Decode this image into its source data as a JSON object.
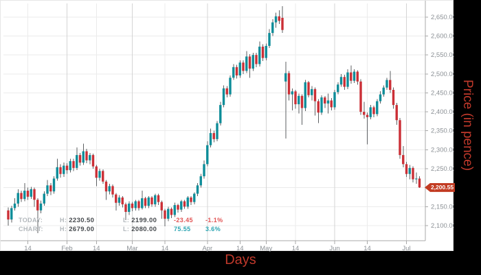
{
  "axis_titles": {
    "x": "Days",
    "y": "Price (in pence)"
  },
  "last_price_badge": "2,200.55",
  "legend": {
    "rows": [
      {
        "label": "TODAY:",
        "h_label": "H:",
        "high": "2230.50",
        "l_label": "L:",
        "low": "2199.00",
        "change": "-23.45",
        "change_pct": "-1.1%",
        "trend": "down"
      },
      {
        "label": "CHART:",
        "h_label": "H:",
        "high": "2679.00",
        "l_label": "L:",
        "low": "2080.00",
        "change": "75.55",
        "change_pct": "3.6%",
        "trend": "up"
      }
    ]
  },
  "colors": {
    "up": "#0e8d99",
    "down": "#cb2f36",
    "wick": "#5c5f62",
    "badge": "#c23b22",
    "axis_title": "#c0392b",
    "grid_minor": "#ebebeb",
    "grid_major": "#d4d4d4",
    "axis_line": "#a8a8a8"
  },
  "chart_data": {
    "type": "candlestick",
    "title": "",
    "xlabel": "Days",
    "ylabel": "Price (in pence)",
    "legend_position": "bottom-left",
    "grid": true,
    "ylim": [
      2060,
      2686
    ],
    "last_price": 2200.55,
    "today": {
      "high": 2230.5,
      "low": 2199.0,
      "change": -23.45,
      "change_pct": -1.1
    },
    "chart_range": {
      "high": 2679.0,
      "low": 2080.0,
      "change": 75.55,
      "change_pct": 3.6
    },
    "y_ticks": [
      {
        "value": 2100,
        "label": "2,100.00"
      },
      {
        "value": 2150,
        "label": "2,150.00"
      },
      {
        "value": 2200,
        "label": "2,200.00"
      },
      {
        "value": 2250,
        "label": "2,250.00"
      },
      {
        "value": 2300,
        "label": "2,300.00"
      },
      {
        "value": 2350,
        "label": "2,350.00"
      },
      {
        "value": 2400,
        "label": "2,400.00"
      },
      {
        "value": 2450,
        "label": "2,450.00"
      },
      {
        "value": 2500,
        "label": "2,500.00"
      },
      {
        "value": 2550,
        "label": "2,550.00"
      },
      {
        "value": 2600,
        "label": "2,600.00"
      },
      {
        "value": 2650,
        "label": "2,650.00"
      }
    ],
    "x_ticks": [
      {
        "label": "14",
        "index": 6,
        "major": false
      },
      {
        "label": "Feb",
        "index": 18,
        "major": true
      },
      {
        "label": "14",
        "index": 27,
        "major": false
      },
      {
        "label": "Mar",
        "index": 38,
        "major": true
      },
      {
        "label": "14",
        "index": 48,
        "major": false
      },
      {
        "label": "Apr",
        "index": 61,
        "major": true
      },
      {
        "label": "14",
        "index": 71,
        "major": false
      },
      {
        "label": "May",
        "index": 79,
        "major": true
      },
      {
        "label": "14",
        "index": 88,
        "major": false
      },
      {
        "label": "Jun",
        "index": 100,
        "major": true
      },
      {
        "label": "14",
        "index": 110,
        "major": false
      },
      {
        "label": "Jul",
        "index": 122,
        "major": true
      }
    ],
    "ohlc": [
      [
        2140,
        2148,
        2100,
        2116
      ],
      [
        2116,
        2152,
        2108,
        2146
      ],
      [
        2146,
        2172,
        2140,
        2158
      ],
      [
        2158,
        2196,
        2150,
        2186
      ],
      [
        2186,
        2192,
        2162,
        2170
      ],
      [
        2170,
        2212,
        2164,
        2192
      ],
      [
        2192,
        2200,
        2168,
        2176
      ],
      [
        2176,
        2202,
        2170,
        2196
      ],
      [
        2196,
        2200,
        2150,
        2168
      ],
      [
        2168,
        2172,
        2080,
        2140
      ],
      [
        2140,
        2166,
        2132,
        2158
      ],
      [
        2158,
        2190,
        2152,
        2184
      ],
      [
        2184,
        2220,
        2178,
        2206
      ],
      [
        2206,
        2212,
        2180,
        2190
      ],
      [
        2190,
        2230,
        2184,
        2224
      ],
      [
        2224,
        2276,
        2218,
        2254
      ],
      [
        2254,
        2262,
        2226,
        2236
      ],
      [
        2236,
        2266,
        2228,
        2258
      ],
      [
        2258,
        2264,
        2236,
        2246
      ],
      [
        2246,
        2276,
        2240,
        2270
      ],
      [
        2270,
        2276,
        2244,
        2252
      ],
      [
        2252,
        2306,
        2246,
        2286
      ],
      [
        2286,
        2292,
        2258,
        2266
      ],
      [
        2266,
        2316,
        2260,
        2296
      ],
      [
        2296,
        2302,
        2264,
        2272
      ],
      [
        2272,
        2292,
        2262,
        2286
      ],
      [
        2286,
        2290,
        2250,
        2256
      ],
      [
        2256,
        2260,
        2204,
        2226
      ],
      [
        2226,
        2250,
        2218,
        2244
      ],
      [
        2244,
        2248,
        2210,
        2216
      ],
      [
        2216,
        2220,
        2168,
        2190
      ],
      [
        2190,
        2210,
        2182,
        2204
      ],
      [
        2204,
        2208,
        2174,
        2182
      ],
      [
        2182,
        2186,
        2140,
        2160
      ],
      [
        2160,
        2180,
        2152,
        2174
      ],
      [
        2174,
        2178,
        2148,
        2156
      ],
      [
        2156,
        2160,
        2114,
        2136
      ],
      [
        2136,
        2164,
        2128,
        2158
      ],
      [
        2158,
        2162,
        2138,
        2146
      ],
      [
        2146,
        2168,
        2140,
        2164
      ],
      [
        2164,
        2168,
        2140,
        2146
      ],
      [
        2146,
        2192,
        2142,
        2172
      ],
      [
        2172,
        2176,
        2146,
        2152
      ],
      [
        2152,
        2178,
        2146,
        2174
      ],
      [
        2174,
        2178,
        2150,
        2156
      ],
      [
        2156,
        2184,
        2150,
        2180
      ],
      [
        2180,
        2184,
        2154,
        2162
      ],
      [
        2162,
        2166,
        2118,
        2140
      ],
      [
        2140,
        2144,
        2098,
        2118
      ],
      [
        2118,
        2150,
        2112,
        2144
      ],
      [
        2144,
        2148,
        2120,
        2128
      ],
      [
        2128,
        2160,
        2122,
        2154
      ],
      [
        2154,
        2158,
        2134,
        2142
      ],
      [
        2142,
        2168,
        2136,
        2164
      ],
      [
        2164,
        2168,
        2144,
        2150
      ],
      [
        2150,
        2178,
        2144,
        2174
      ],
      [
        2174,
        2178,
        2154,
        2162
      ],
      [
        2162,
        2188,
        2156,
        2184
      ],
      [
        2184,
        2212,
        2178,
        2206
      ],
      [
        2206,
        2236,
        2200,
        2230
      ],
      [
        2230,
        2272,
        2224,
        2262
      ],
      [
        2262,
        2322,
        2256,
        2312
      ],
      [
        2312,
        2356,
        2306,
        2344
      ],
      [
        2344,
        2350,
        2320,
        2328
      ],
      [
        2328,
        2376,
        2322,
        2370
      ],
      [
        2370,
        2426,
        2364,
        2418
      ],
      [
        2418,
        2470,
        2412,
        2462
      ],
      [
        2462,
        2468,
        2438,
        2446
      ],
      [
        2446,
        2496,
        2440,
        2490
      ],
      [
        2490,
        2526,
        2484,
        2518
      ],
      [
        2518,
        2524,
        2488,
        2496
      ],
      [
        2496,
        2536,
        2490,
        2530
      ],
      [
        2530,
        2536,
        2500,
        2508
      ],
      [
        2508,
        2560,
        2502,
        2546
      ],
      [
        2546,
        2552,
        2490,
        2514
      ],
      [
        2514,
        2556,
        2508,
        2550
      ],
      [
        2550,
        2556,
        2518,
        2526
      ],
      [
        2526,
        2586,
        2520,
        2572
      ],
      [
        2572,
        2578,
        2534,
        2542
      ],
      [
        2542,
        2580,
        2536,
        2574
      ],
      [
        2574,
        2618,
        2568,
        2608
      ],
      [
        2608,
        2644,
        2600,
        2636
      ],
      [
        2636,
        2662,
        2622,
        2652
      ],
      [
        2652,
        2668,
        2632,
        2640
      ],
      [
        2648,
        2679,
        2608,
        2616
      ],
      [
        2480,
        2532,
        2330,
        2502
      ],
      [
        2502,
        2508,
        2430,
        2446
      ],
      [
        2446,
        2462,
        2404,
        2454
      ],
      [
        2454,
        2458,
        2408,
        2420
      ],
      [
        2420,
        2448,
        2396,
        2442
      ],
      [
        2442,
        2446,
        2366,
        2410
      ],
      [
        2410,
        2484,
        2402,
        2478
      ],
      [
        2478,
        2482,
        2438,
        2444
      ],
      [
        2444,
        2468,
        2430,
        2460
      ],
      [
        2460,
        2464,
        2390,
        2428
      ],
      [
        2428,
        2434,
        2370,
        2398
      ],
      [
        2398,
        2444,
        2392,
        2438
      ],
      [
        2438,
        2442,
        2410,
        2422
      ],
      [
        2422,
        2448,
        2396,
        2430
      ],
      [
        2430,
        2436,
        2404,
        2412
      ],
      [
        2412,
        2458,
        2406,
        2452
      ],
      [
        2452,
        2478,
        2446,
        2472
      ],
      [
        2472,
        2500,
        2466,
        2492
      ],
      [
        2492,
        2498,
        2458,
        2466
      ],
      [
        2466,
        2512,
        2460,
        2504
      ],
      [
        2504,
        2522,
        2474,
        2482
      ],
      [
        2482,
        2512,
        2476,
        2506
      ],
      [
        2506,
        2510,
        2472,
        2480
      ],
      [
        2480,
        2486,
        2392,
        2400
      ],
      [
        2400,
        2426,
        2382,
        2392
      ],
      [
        2392,
        2398,
        2314,
        2386
      ],
      [
        2386,
        2418,
        2380,
        2412
      ],
      [
        2412,
        2416,
        2386,
        2394
      ],
      [
        2394,
        2434,
        2388,
        2428
      ],
      [
        2428,
        2454,
        2422,
        2446
      ],
      [
        2446,
        2470,
        2440,
        2464
      ],
      [
        2464,
        2490,
        2458,
        2484
      ],
      [
        2484,
        2508,
        2450,
        2458
      ],
      [
        2458,
        2464,
        2408,
        2418
      ],
      [
        2418,
        2424,
        2366,
        2378
      ],
      [
        2378,
        2384,
        2276,
        2286
      ],
      [
        2286,
        2310,
        2254,
        2262
      ],
      [
        2262,
        2268,
        2228,
        2236
      ],
      [
        2236,
        2260,
        2222,
        2252
      ],
      [
        2252,
        2256,
        2214,
        2222
      ],
      [
        2222,
        2240,
        2210,
        2224
      ],
      [
        2224,
        2230.5,
        2199,
        2200.55
      ]
    ]
  }
}
